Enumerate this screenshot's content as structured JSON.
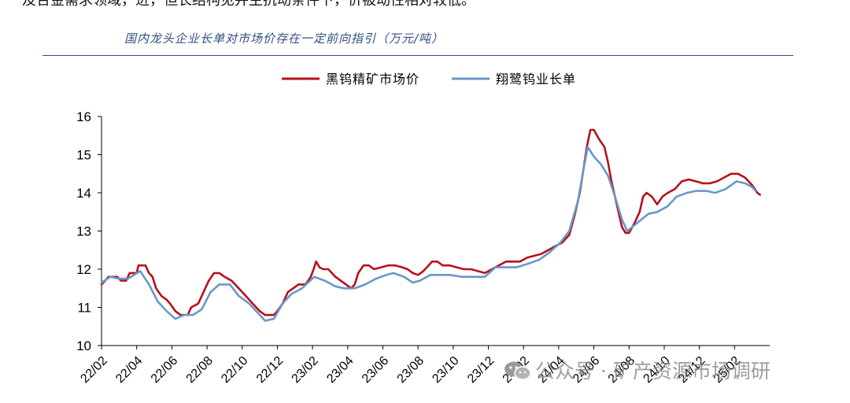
{
  "context_text": "及合金需求领域，进，但长结构见并主抗动条件下，价被动性相对较低。",
  "watermark": "公众号 · 矿产资源市场调研",
  "chart_data": {
    "type": "line",
    "title": "国内龙头企业长单对市场价存在一定前向指引（万元/吨）",
    "xlabel": "",
    "ylabel": "",
    "ylim": [
      10,
      16
    ],
    "yticks": [
      10,
      11,
      12,
      13,
      14,
      15,
      16
    ],
    "xlim": [
      0,
      38
    ],
    "xticks": [
      {
        "x": 0,
        "label": "22/02"
      },
      {
        "x": 2,
        "label": "22/04"
      },
      {
        "x": 4,
        "label": "22/06"
      },
      {
        "x": 6,
        "label": "22/08"
      },
      {
        "x": 8,
        "label": "22/10"
      },
      {
        "x": 10,
        "label": "22/12"
      },
      {
        "x": 12,
        "label": "23/02"
      },
      {
        "x": 14,
        "label": "23/04"
      },
      {
        "x": 16,
        "label": "23/06"
      },
      {
        "x": 18,
        "label": "23/08"
      },
      {
        "x": 20,
        "label": "23/10"
      },
      {
        "x": 22,
        "label": "23/12"
      },
      {
        "x": 24,
        "label": "24/02"
      },
      {
        "x": 26,
        "label": "24/04"
      },
      {
        "x": 28,
        "label": "24/06"
      },
      {
        "x": 30,
        "label": "24/08"
      },
      {
        "x": 32,
        "label": "24/10"
      },
      {
        "x": 34,
        "label": "24/12"
      },
      {
        "x": 36,
        "label": "25/02"
      }
    ],
    "grid": false,
    "legend_position": "top-center",
    "series": [
      {
        "name": "黑钨精矿市场价",
        "color": "#b5121b",
        "width": 2.6,
        "points": [
          [
            0,
            11.6
          ],
          [
            0.2,
            11.7
          ],
          [
            0.4,
            11.8
          ],
          [
            0.9,
            11.8
          ],
          [
            1.1,
            11.7
          ],
          [
            1.4,
            11.7
          ],
          [
            1.6,
            11.9
          ],
          [
            2,
            11.9
          ],
          [
            2.1,
            12.1
          ],
          [
            2.5,
            12.1
          ],
          [
            2.7,
            11.9
          ],
          [
            2.9,
            11.8
          ],
          [
            3.1,
            11.5
          ],
          [
            3.4,
            11.3
          ],
          [
            3.7,
            11.2
          ],
          [
            3.9,
            11.1
          ],
          [
            4.2,
            10.9
          ],
          [
            4.5,
            10.8
          ],
          [
            4.9,
            10.8
          ],
          [
            5.1,
            11.0
          ],
          [
            5.5,
            11.1
          ],
          [
            5.8,
            11.4
          ],
          [
            6.1,
            11.7
          ],
          [
            6.4,
            11.9
          ],
          [
            6.7,
            11.9
          ],
          [
            7,
            11.8
          ],
          [
            7.4,
            11.7
          ],
          [
            7.8,
            11.5
          ],
          [
            8.2,
            11.3
          ],
          [
            8.6,
            11.1
          ],
          [
            9,
            10.9
          ],
          [
            9.3,
            10.8
          ],
          [
            9.8,
            10.8
          ],
          [
            10,
            10.9
          ],
          [
            10.3,
            11.1
          ],
          [
            10.6,
            11.4
          ],
          [
            10.9,
            11.5
          ],
          [
            11.2,
            11.6
          ],
          [
            11.6,
            11.6
          ],
          [
            11.9,
            11.8
          ],
          [
            12.1,
            12.05
          ],
          [
            12.2,
            12.2
          ],
          [
            12.4,
            12.05
          ],
          [
            12.6,
            12.0
          ],
          [
            12.9,
            12.0
          ],
          [
            13.1,
            11.9
          ],
          [
            13.3,
            11.8
          ],
          [
            13.6,
            11.7
          ],
          [
            13.9,
            11.6
          ],
          [
            14.2,
            11.5
          ],
          [
            14.4,
            11.6
          ],
          [
            14.6,
            11.9
          ],
          [
            14.9,
            12.1
          ],
          [
            15.2,
            12.1
          ],
          [
            15.5,
            12.0
          ],
          [
            15.9,
            12.05
          ],
          [
            16.3,
            12.1
          ],
          [
            16.7,
            12.1
          ],
          [
            17.1,
            12.05
          ],
          [
            17.4,
            12.0
          ],
          [
            17.7,
            11.9
          ],
          [
            18,
            11.85
          ],
          [
            18.3,
            11.95
          ],
          [
            18.6,
            12.1
          ],
          [
            18.8,
            12.2
          ],
          [
            19.1,
            12.2
          ],
          [
            19.4,
            12.1
          ],
          [
            19.8,
            12.1
          ],
          [
            20.2,
            12.05
          ],
          [
            20.6,
            12.0
          ],
          [
            21,
            12.0
          ],
          [
            21.4,
            11.95
          ],
          [
            21.8,
            11.9
          ],
          [
            22.2,
            12.0
          ],
          [
            22.6,
            12.1
          ],
          [
            23,
            12.2
          ],
          [
            23.4,
            12.2
          ],
          [
            23.8,
            12.2
          ],
          [
            24.2,
            12.3
          ],
          [
            24.6,
            12.35
          ],
          [
            25,
            12.4
          ],
          [
            25.4,
            12.5
          ],
          [
            25.8,
            12.6
          ],
          [
            26.2,
            12.7
          ],
          [
            26.6,
            12.9
          ],
          [
            26.9,
            13.4
          ],
          [
            27.2,
            14.0
          ],
          [
            27.4,
            14.6
          ],
          [
            27.6,
            15.2
          ],
          [
            27.8,
            15.65
          ],
          [
            28,
            15.65
          ],
          [
            28.3,
            15.4
          ],
          [
            28.6,
            15.2
          ],
          [
            28.8,
            14.8
          ],
          [
            29,
            14.3
          ],
          [
            29.3,
            13.7
          ],
          [
            29.6,
            13.1
          ],
          [
            29.8,
            12.95
          ],
          [
            30,
            12.95
          ],
          [
            30.3,
            13.2
          ],
          [
            30.6,
            13.5
          ],
          [
            30.8,
            13.9
          ],
          [
            31,
            14.0
          ],
          [
            31.3,
            13.9
          ],
          [
            31.6,
            13.7
          ],
          [
            31.9,
            13.9
          ],
          [
            32.2,
            14.0
          ],
          [
            32.6,
            14.1
          ],
          [
            33,
            14.3
          ],
          [
            33.4,
            14.35
          ],
          [
            33.8,
            14.3
          ],
          [
            34.2,
            14.25
          ],
          [
            34.6,
            14.25
          ],
          [
            35,
            14.3
          ],
          [
            35.4,
            14.4
          ],
          [
            35.8,
            14.5
          ],
          [
            36.2,
            14.5
          ],
          [
            36.6,
            14.4
          ],
          [
            37,
            14.2
          ],
          [
            37.3,
            14.0
          ],
          [
            37.45,
            13.95
          ]
        ]
      },
      {
        "name": "翔鹭钨业长单",
        "color": "#6a97c8",
        "width": 2.6,
        "points": [
          [
            0,
            11.65
          ],
          [
            0.5,
            11.8
          ],
          [
            1,
            11.75
          ],
          [
            1.5,
            11.75
          ],
          [
            2.2,
            11.95
          ],
          [
            2.7,
            11.6
          ],
          [
            3.2,
            11.15
          ],
          [
            3.7,
            10.9
          ],
          [
            4.2,
            10.7
          ],
          [
            4.7,
            10.8
          ],
          [
            5.2,
            10.8
          ],
          [
            5.7,
            10.95
          ],
          [
            6.2,
            11.4
          ],
          [
            6.7,
            11.6
          ],
          [
            7.3,
            11.6
          ],
          [
            7.8,
            11.3
          ],
          [
            8.4,
            11.1
          ],
          [
            8.9,
            10.85
          ],
          [
            9.3,
            10.65
          ],
          [
            9.8,
            10.7
          ],
          [
            10.3,
            11.1
          ],
          [
            10.8,
            11.35
          ],
          [
            11.4,
            11.5
          ],
          [
            12.1,
            11.8
          ],
          [
            12.7,
            11.7
          ],
          [
            13.3,
            11.55
          ],
          [
            13.8,
            11.5
          ],
          [
            14.4,
            11.5
          ],
          [
            15,
            11.6
          ],
          [
            15.6,
            11.75
          ],
          [
            16.2,
            11.85
          ],
          [
            16.6,
            11.9
          ],
          [
            17.2,
            11.8
          ],
          [
            17.7,
            11.65
          ],
          [
            18.1,
            11.7
          ],
          [
            18.7,
            11.85
          ],
          [
            19.3,
            11.85
          ],
          [
            19.8,
            11.85
          ],
          [
            20.5,
            11.8
          ],
          [
            21.2,
            11.8
          ],
          [
            21.8,
            11.8
          ],
          [
            22.4,
            12.05
          ],
          [
            23,
            12.05
          ],
          [
            23.6,
            12.05
          ],
          [
            24.3,
            12.15
          ],
          [
            24.9,
            12.25
          ],
          [
            25.5,
            12.45
          ],
          [
            26.1,
            12.7
          ],
          [
            26.6,
            13.0
          ],
          [
            27.1,
            13.8
          ],
          [
            27.4,
            14.6
          ],
          [
            27.65,
            15.2
          ],
          [
            28,
            14.95
          ],
          [
            28.4,
            14.75
          ],
          [
            28.8,
            14.45
          ],
          [
            29.2,
            13.9
          ],
          [
            29.6,
            13.3
          ],
          [
            29.9,
            13.0
          ],
          [
            30.3,
            13.15
          ],
          [
            30.7,
            13.3
          ],
          [
            31.1,
            13.45
          ],
          [
            31.6,
            13.5
          ],
          [
            32.2,
            13.65
          ],
          [
            32.7,
            13.9
          ],
          [
            33.3,
            14.0
          ],
          [
            33.8,
            14.05
          ],
          [
            34.4,
            14.05
          ],
          [
            34.9,
            14.0
          ],
          [
            35.5,
            14.1
          ],
          [
            36.1,
            14.3
          ],
          [
            36.6,
            14.25
          ],
          [
            37,
            14.15
          ],
          [
            37.2,
            14.05
          ]
        ]
      }
    ]
  }
}
